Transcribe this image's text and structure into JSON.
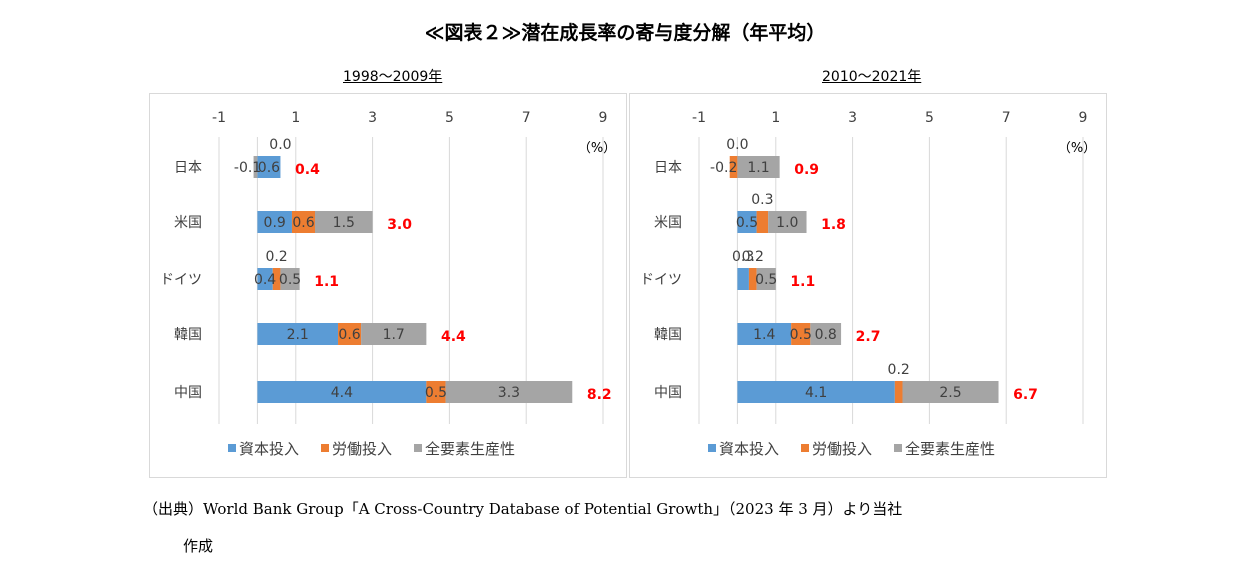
{
  "title": "≪図表２≫潜在成長率の寄与度分解（年平均）",
  "source_line1": "（出典）World Bank Group「A Cross-Country Database of Potential Growth」（2023 年 3 月）より当社",
  "source_line2": "作成",
  "colors": {
    "capital": "#5b9bd5",
    "labor": "#ed7d31",
    "tfp": "#a5a5a5",
    "total": "#ff0000",
    "grid": "#d9d9d9",
    "label": "#404040"
  },
  "chart_data": [
    {
      "type": "bar",
      "orientation": "horizontal-stacked",
      "title": "1998～2009年",
      "unit_label": "（%）",
      "xlim": [
        -1,
        9
      ],
      "xticks": [
        -1,
        1,
        3,
        5,
        7,
        9
      ],
      "grid": true,
      "legend_position": "bottom",
      "categories": [
        "日本",
        "米国",
        "ドイツ",
        "韓国",
        "中国"
      ],
      "series": [
        {
          "name": "資本投入",
          "key": "capital",
          "values": [
            0.6,
            0.9,
            0.4,
            2.1,
            4.4
          ]
        },
        {
          "name": "労働投入",
          "key": "labor",
          "values": [
            0.0,
            0.6,
            0.2,
            0.6,
            0.5
          ]
        },
        {
          "name": "全要素生産性",
          "key": "tfp",
          "values": [
            -0.1,
            1.5,
            0.5,
            1.7,
            3.3
          ]
        }
      ],
      "totals": [
        0.4,
        3.0,
        1.1,
        4.4,
        8.2
      ],
      "value_labels": [
        [
          "0.6",
          "0.0",
          "-0.1"
        ],
        [
          "0.9",
          "0.6",
          "1.5"
        ],
        [
          "0.4",
          "0.2",
          "0.5"
        ],
        [
          "2.1",
          "0.6",
          "1.7"
        ],
        [
          "4.4",
          "0.5",
          "3.3"
        ]
      ],
      "total_labels": [
        "0.4",
        "3.0",
        "1.1",
        "4.4",
        "8.2"
      ]
    },
    {
      "type": "bar",
      "orientation": "horizontal-stacked",
      "title": "2010～2021年",
      "unit_label": "（%）",
      "xlim": [
        -1,
        9
      ],
      "xticks": [
        -1,
        1,
        3,
        5,
        7,
        9
      ],
      "grid": true,
      "legend_position": "bottom",
      "categories": [
        "日本",
        "米国",
        "ドイツ",
        "韓国",
        "中国"
      ],
      "series": [
        {
          "name": "資本投入",
          "key": "capital",
          "values": [
            0.0,
            0.5,
            0.3,
            1.4,
            4.1
          ]
        },
        {
          "name": "労働投入",
          "key": "labor",
          "values": [
            -0.2,
            0.3,
            0.2,
            0.5,
            0.2
          ]
        },
        {
          "name": "全要素生産性",
          "key": "tfp",
          "values": [
            1.1,
            1.0,
            0.5,
            0.8,
            2.5
          ]
        }
      ],
      "totals": [
        0.9,
        1.8,
        1.1,
        2.7,
        6.7
      ],
      "value_labels": [
        [
          "0.0",
          "-0.2",
          "1.1"
        ],
        [
          "0.5",
          "0.3",
          "1.0"
        ],
        [
          "0.3",
          "0.2",
          "0.5"
        ],
        [
          "1.4",
          "0.5",
          "0.8"
        ],
        [
          "4.1",
          "0.2",
          "2.5"
        ]
      ],
      "total_labels": [
        "0.9",
        "1.8",
        "1.1",
        "2.7",
        "6.7"
      ]
    }
  ]
}
